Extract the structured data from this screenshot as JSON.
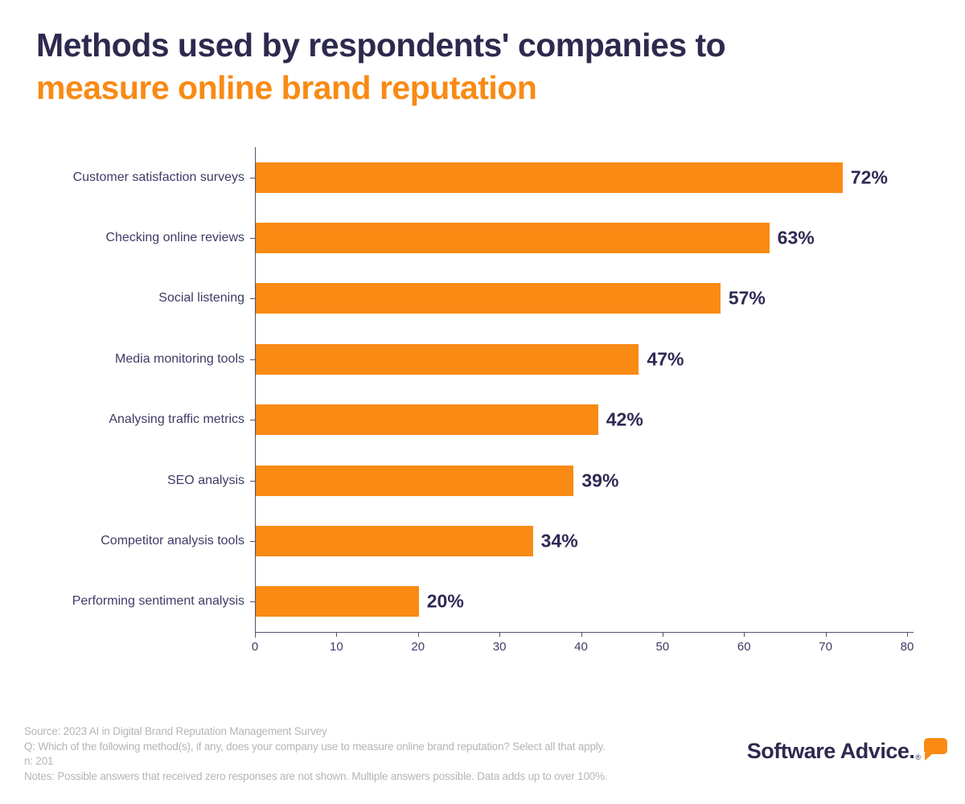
{
  "title": {
    "line1": "Methods used by respondents' companies to",
    "line2": "measure online brand reputation"
  },
  "colors": {
    "navy": "#2D2A4E",
    "orange": "#F98A14",
    "axis_label": "#413A66",
    "value_label": "#2E2A54",
    "spine": "#55516E",
    "footer_gray": "#B5B5B5"
  },
  "chart_data": {
    "type": "bar",
    "orientation": "horizontal",
    "title": "Methods used by respondents' companies to measure online brand reputation",
    "categories": [
      "Customer satisfaction surveys",
      "Checking online reviews",
      "Social listening",
      "Media monitoring tools",
      "Analysing traffic metrics",
      "SEO analysis",
      "Competitor analysis tools",
      "Performing sentiment analysis"
    ],
    "values": [
      72,
      63,
      57,
      47,
      42,
      39,
      34,
      20
    ],
    "value_labels": [
      "72%",
      "63%",
      "57%",
      "47%",
      "42%",
      "39%",
      "34%",
      "20%"
    ],
    "xlabel": "",
    "ylabel": "",
    "xlim": [
      0,
      80
    ],
    "xticks": [
      0,
      10,
      20,
      30,
      40,
      50,
      60,
      70,
      80
    ],
    "grid": false,
    "legend": false,
    "bar_color": "#F98A14"
  },
  "footer": {
    "lines": [
      "Source: 2023 AI in Digital Brand Reputation Management Survey",
      "Q: Which of the following method(s), if any, does your company use to measure online brand reputation? Select all that apply.",
      "n: 201",
      "Notes: Possible answers that received zero responses are not shown. Multiple answers possible. Data adds up to over 100%."
    ]
  },
  "logo": {
    "text": "Software Advice.",
    "registered": "®"
  }
}
